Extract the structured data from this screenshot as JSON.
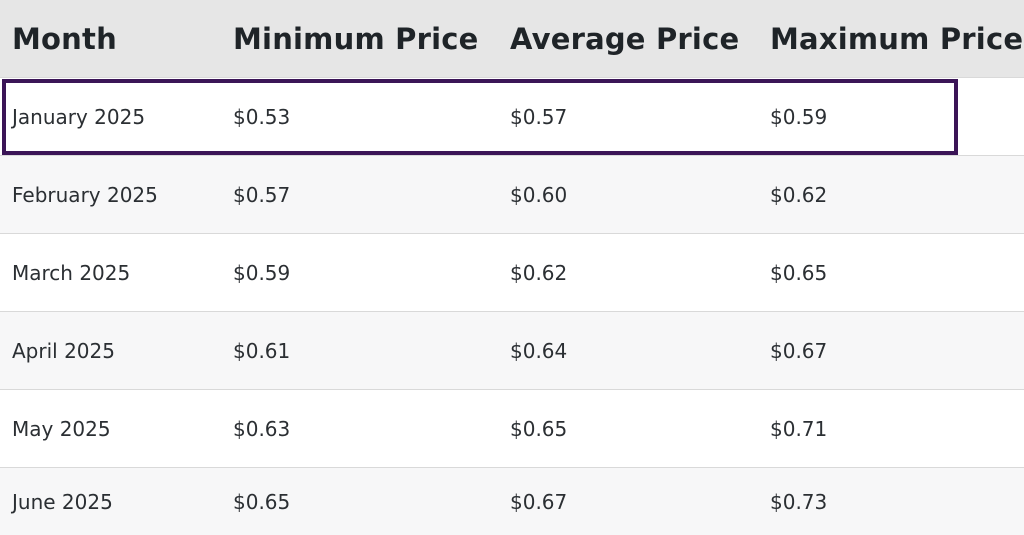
{
  "table": {
    "headers": [
      "Month",
      "Minimum Price",
      "Average Price",
      "Maximum Price"
    ],
    "rows": [
      [
        "January 2025",
        "$0.53",
        "$0.57",
        "$0.59"
      ],
      [
        "February 2025",
        "$0.57",
        "$0.60",
        "$0.62"
      ],
      [
        "March 2025",
        "$0.59",
        "$0.62",
        "$0.65"
      ],
      [
        "April 2025",
        "$0.61",
        "$0.64",
        "$0.67"
      ],
      [
        "May 2025",
        "$0.63",
        "$0.65",
        "$0.71"
      ],
      [
        "June 2025",
        "$0.65",
        "$0.67",
        "$0.73"
      ]
    ],
    "highlighted_row_index": 0,
    "highlight_color": "#3b1557",
    "header_background": "#e6e6e6",
    "stripe_background": "#f7f7f8"
  }
}
